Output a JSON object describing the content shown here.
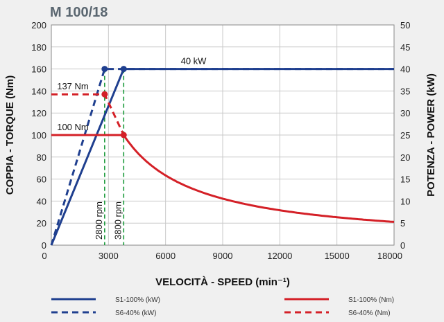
{
  "chart_data": {
    "type": "line",
    "title": "M 100/18",
    "xlabel": "VELOCITÀ - SPEED (min⁻¹)",
    "ylabel_left": "COPPIA - TORQUE (Nm)",
    "ylabel_right": "POTENZA - POWER (kW)",
    "xlim": [
      0,
      18000
    ],
    "ylim_left": [
      0,
      200
    ],
    "ylim_right": [
      0,
      50
    ],
    "x_ticks": [
      "0",
      "3000",
      "6000",
      "9000",
      "12000",
      "15000",
      "18000"
    ],
    "x_tick_values": [
      0,
      3000,
      6000,
      9000,
      12000,
      15000,
      18000
    ],
    "y_left_ticks": [
      "0",
      "20",
      "40",
      "60",
      "80",
      "100",
      "120",
      "140",
      "160",
      "180",
      "200"
    ],
    "y_left_tick_values": [
      0,
      20,
      40,
      60,
      80,
      100,
      120,
      140,
      160,
      180,
      200
    ],
    "y_right_ticks": [
      "0",
      "5",
      "10",
      "15",
      "20",
      "25",
      "30",
      "35",
      "40",
      "45",
      "50"
    ],
    "y_right_tick_values": [
      0,
      5,
      10,
      15,
      20,
      25,
      30,
      35,
      40,
      45,
      50
    ],
    "grid": true,
    "legend_position": "bottom",
    "series": [
      {
        "name": "S1-100% (kW)",
        "axis": "right",
        "color": "#1f3f8f",
        "dash": "solid",
        "x": [
          0,
          3800,
          18000
        ],
        "y": [
          0,
          40,
          40
        ]
      },
      {
        "name": "S6-40% (kW)",
        "axis": "right",
        "color": "#1f3f8f",
        "dash": "dashed",
        "x": [
          0,
          2800,
          18000
        ],
        "y": [
          0,
          40,
          40
        ]
      },
      {
        "name": "S1-100% (Nm)",
        "axis": "left",
        "color": "#d42027",
        "dash": "solid",
        "x": [
          0,
          3800,
          4500,
          5000,
          6000,
          7000,
          8000,
          9000,
          10000,
          11000,
          12000,
          13000,
          14000,
          15000,
          16000,
          17000,
          18000
        ],
        "y": [
          100,
          100,
          84.9,
          76.4,
          63.7,
          54.6,
          47.7,
          42.4,
          38.2,
          34.7,
          31.8,
          29.4,
          27.3,
          25.5,
          23.9,
          22.5,
          21.2
        ]
      },
      {
        "name": "S6-40% (Nm)",
        "axis": "left",
        "color": "#d42027",
        "dash": "dashed",
        "x": [
          0,
          2800,
          3800
        ],
        "y": [
          137,
          137,
          100
        ]
      }
    ],
    "markers": [
      {
        "x": 2800,
        "y": 40,
        "axis": "right",
        "color": "#1f3f8f"
      },
      {
        "x": 3800,
        "y": 40,
        "axis": "right",
        "color": "#1f3f8f"
      },
      {
        "x": 2800,
        "y": 137,
        "axis": "left",
        "color": "#d42027"
      },
      {
        "x": 3800,
        "y": 100,
        "axis": "left",
        "color": "#d42027"
      }
    ],
    "vlines": [
      {
        "x": 2800,
        "label": "2800 rpm",
        "color": "#1a9a3a"
      },
      {
        "x": 3800,
        "label": "3800 rpm",
        "color": "#1a9a3a"
      }
    ],
    "annotations": [
      {
        "text": "40 kW",
        "x": 6800,
        "y": 40,
        "axis": "right"
      },
      {
        "text": "137 Nm",
        "x": 300,
        "y": 137,
        "axis": "left"
      },
      {
        "text": "100 Nm",
        "x": 300,
        "y": 100,
        "axis": "left"
      }
    ]
  }
}
